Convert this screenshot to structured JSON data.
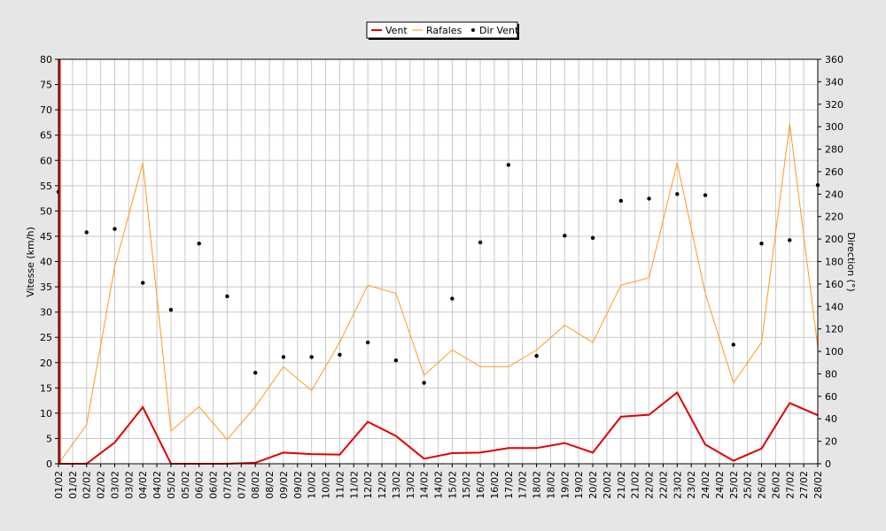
{
  "chart_data": {
    "type": "line",
    "legend": {
      "position": "top-center",
      "items": [
        {
          "name": "Vent",
          "color": "#e00000",
          "kind": "line"
        },
        {
          "name": "Rafales",
          "color": "#ff9a1a",
          "kind": "line"
        },
        {
          "name": "Dir Vent",
          "color": "#000000",
          "kind": "dots"
        }
      ]
    },
    "ylabel_left": "Vitesse (km/h)",
    "ylabel_right": "Direction (°)",
    "ylim_left": [
      0,
      80
    ],
    "ylim_right": [
      0,
      360
    ],
    "yticks_left": [
      "0",
      "5",
      "10",
      "15",
      "20",
      "25",
      "30",
      "35",
      "40",
      "45",
      "50",
      "55",
      "60",
      "65",
      "70",
      "75",
      "80"
    ],
    "yticks_right": [
      "0",
      "20",
      "40",
      "60",
      "80",
      "100",
      "120",
      "140",
      "160",
      "180",
      "200",
      "220",
      "240",
      "260",
      "280",
      "300",
      "320",
      "340",
      "360"
    ],
    "xtick_labels": [
      "01/02",
      "01/02",
      "02/02",
      "02/02",
      "03/02",
      "03/02",
      "04/02",
      "04/02",
      "05/02",
      "05/02",
      "06/02",
      "06/02",
      "07/02",
      "07/02",
      "08/02",
      "08/02",
      "09/02",
      "09/02",
      "10/02",
      "10/02",
      "11/02",
      "11/02",
      "12/02",
      "12/02",
      "13/02",
      "13/02",
      "14/02",
      "14/02",
      "15/02",
      "15/02",
      "16/02",
      "16/02",
      "17/02",
      "17/02",
      "18/02",
      "18/02",
      "19/02",
      "19/02",
      "20/02",
      "20/02",
      "21/02",
      "21/02",
      "22/02",
      "22/02",
      "23/02",
      "23/02",
      "24/02",
      "24/02",
      "25/02",
      "25/02",
      "26/02",
      "26/02",
      "27/02",
      "27/02",
      "28/02"
    ],
    "x": [
      "01/02",
      "02/02",
      "03/02",
      "04/02",
      "05/02",
      "06/02",
      "07/02",
      "08/02",
      "09/02",
      "10/02",
      "11/02",
      "12/02",
      "13/02",
      "14/02",
      "15/02",
      "16/02",
      "17/02",
      "18/02",
      "19/02",
      "20/02",
      "21/02",
      "22/02",
      "23/02",
      "24/02",
      "25/02",
      "26/02",
      "27/02",
      "28/02"
    ],
    "series": [
      {
        "name": "Vent",
        "axis": "left",
        "values": [
          0,
          0,
          4.2,
          11.2,
          0,
          0,
          0,
          0.2,
          2.2,
          1.9,
          1.8,
          8.3,
          5.5,
          1.0,
          2.1,
          2.2,
          3.1,
          3.1,
          4.1,
          2.2,
          9.3,
          9.7,
          14.1,
          3.8,
          0.6,
          3.0,
          12.0,
          9.6
        ]
      },
      {
        "name": "Rafales",
        "axis": "left",
        "values": [
          0,
          7.7,
          39.0,
          59.5,
          6.5,
          11.3,
          4.8,
          11.3,
          19.2,
          14.5,
          24.0,
          35.3,
          33.7,
          17.5,
          22.5,
          19.2,
          19.2,
          22.5,
          27.4,
          24.0,
          35.3,
          36.8,
          59.5,
          33.7,
          16.0,
          24.0,
          67.2,
          23.0
        ]
      },
      {
        "name": "Dir Vent",
        "axis": "right",
        "values": [
          242,
          206,
          209,
          161,
          137,
          196,
          149,
          81,
          95,
          95,
          97,
          108,
          92,
          72,
          147,
          197,
          266,
          96,
          203,
          201,
          234,
          236,
          240,
          239,
          106,
          196,
          199,
          248
        ]
      }
    ],
    "grid": true
  }
}
